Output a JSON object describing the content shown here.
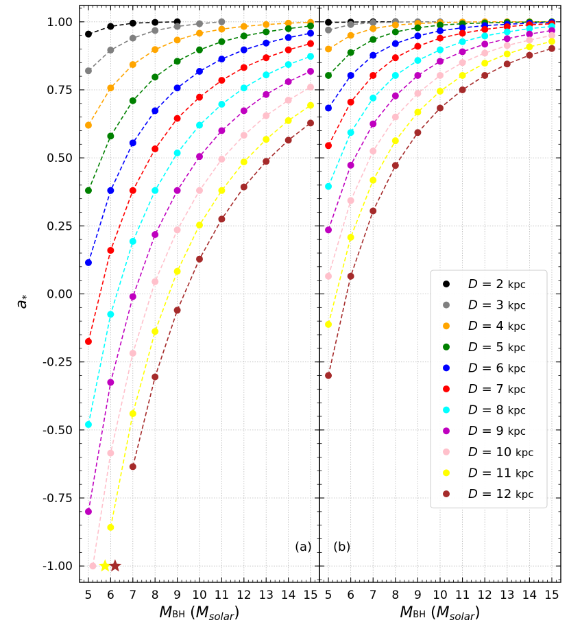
{
  "chart_data": [
    {
      "type": "line",
      "panel_label": "(a)",
      "xlabel": "M_BH (M_solar)",
      "xlabel_main": "M",
      "xlabel_sub": "BH",
      "xlabel_unit": "M",
      "xlabel_unit_sub": "solar",
      "ylabel": "a*",
      "ylabel_main": "a",
      "ylabel_sub": "*",
      "xlim": [
        4.6,
        15.4
      ],
      "ylim": [
        -1.06,
        1.06
      ],
      "xticks": [
        5,
        6,
        7,
        8,
        9,
        10,
        11,
        12,
        13,
        14,
        15
      ],
      "xtick_labels": [
        "5",
        "6",
        "7",
        "8",
        "9",
        "10",
        "11",
        "12",
        "13",
        "14",
        "15"
      ],
      "yticks": [
        1.0,
        0.75,
        0.5,
        0.25,
        0.0,
        -0.25,
        -0.5,
        -0.75,
        -1.0
      ],
      "ytick_labels": [
        "1.00",
        "0.75",
        "0.50",
        "0.25",
        "0.00",
        "-0.25",
        "-0.50",
        "-0.75",
        "-1.00"
      ],
      "grid": true,
      "series": [
        {
          "name": "D = 2 kpc",
          "color": "#000000",
          "x": [
            5,
            6,
            7,
            8,
            9
          ],
          "y": [
            0.955,
            0.983,
            0.995,
            0.998,
            1.0
          ]
        },
        {
          "name": "D = 3 kpc",
          "color": "#808080",
          "x": [
            5,
            6,
            7,
            8,
            9,
            10,
            11
          ],
          "y": [
            0.82,
            0.896,
            0.94,
            0.968,
            0.983,
            0.993,
            1.0
          ]
        },
        {
          "name": "D = 4 kpc",
          "color": "#FFA500",
          "x": [
            5,
            6,
            7,
            8,
            9,
            10,
            11,
            12,
            13,
            14,
            15
          ],
          "y": [
            0.62,
            0.757,
            0.843,
            0.898,
            0.933,
            0.958,
            0.973,
            0.983,
            0.99,
            0.995,
            0.998
          ]
        },
        {
          "name": "D = 5 kpc",
          "color": "#008000",
          "x": [
            5,
            6,
            7,
            8,
            9,
            10,
            11,
            12,
            13,
            14,
            15
          ],
          "y": [
            0.38,
            0.58,
            0.71,
            0.797,
            0.855,
            0.897,
            0.927,
            0.948,
            0.963,
            0.975,
            0.985
          ]
        },
        {
          "name": "D = 6 kpc",
          "color": "#0000FF",
          "x": [
            5,
            6,
            7,
            8,
            9,
            10,
            11,
            12,
            13,
            14,
            15
          ],
          "y": [
            0.115,
            0.38,
            0.555,
            0.673,
            0.757,
            0.818,
            0.863,
            0.897,
            0.922,
            0.942,
            0.958
          ]
        },
        {
          "name": "D = 7 kpc",
          "color": "#FF0000",
          "x": [
            5,
            6,
            7,
            8,
            9,
            10,
            11,
            12,
            13,
            14,
            15
          ],
          "y": [
            -0.175,
            0.16,
            0.38,
            0.533,
            0.645,
            0.723,
            0.785,
            0.832,
            0.868,
            0.897,
            0.92
          ]
        },
        {
          "name": "D = 8 kpc",
          "color": "#00FFFF",
          "x": [
            5,
            6,
            7,
            8,
            9,
            10,
            11,
            12,
            13,
            14,
            15
          ],
          "y": [
            -0.48,
            -0.075,
            0.193,
            0.38,
            0.518,
            0.62,
            0.697,
            0.757,
            0.805,
            0.843,
            0.873
          ]
        },
        {
          "name": "D = 9 kpc",
          "color": "#BF00BF",
          "x": [
            5,
            6,
            7,
            8,
            9,
            10,
            11,
            12,
            13,
            14,
            15
          ],
          "y": [
            -0.8,
            -0.325,
            -0.01,
            0.218,
            0.38,
            0.505,
            0.6,
            0.673,
            0.733,
            0.78,
            0.818
          ]
        },
        {
          "name": "D = 10 kpc",
          "color": "#FFC0CB",
          "x": [
            5.2,
            6,
            7,
            8,
            9,
            10,
            11,
            12,
            13,
            14,
            15
          ],
          "y": [
            -1.0,
            -0.585,
            -0.218,
            0.045,
            0.235,
            0.38,
            0.495,
            0.583,
            0.655,
            0.712,
            0.76
          ]
        },
        {
          "name": "D = 11 kpc",
          "color": "#FFFF00",
          "x": [
            6,
            7,
            8,
            9,
            10,
            11,
            12,
            13,
            14,
            15
          ],
          "y": [
            -0.858,
            -0.44,
            -0.138,
            0.083,
            0.253,
            0.38,
            0.485,
            0.568,
            0.637,
            0.693
          ]
        },
        {
          "name": "D = 12 kpc",
          "color": "#A52A2A",
          "x": [
            7,
            8,
            9,
            10,
            11,
            12,
            13,
            14,
            15
          ],
          "y": [
            -0.635,
            -0.305,
            -0.06,
            0.128,
            0.275,
            0.393,
            0.487,
            0.565,
            0.628
          ]
        }
      ],
      "markers": [
        {
          "series": "D = 11 kpc",
          "x": 5.75,
          "y": -1.0,
          "shape": "star",
          "color": "#FFFF00"
        },
        {
          "series": "D = 12 kpc",
          "x": 6.2,
          "y": -1.0,
          "shape": "star",
          "color": "#A52A2A"
        }
      ]
    },
    {
      "type": "line",
      "panel_label": "(b)",
      "xlabel": "M_BH (M_solar)",
      "xlabel_main": "M",
      "xlabel_sub": "BH",
      "xlabel_unit": "M",
      "xlabel_unit_sub": "solar",
      "xlim": [
        4.6,
        15.4
      ],
      "ylim": [
        -1.06,
        1.06
      ],
      "xticks": [
        5,
        6,
        7,
        8,
        9,
        10,
        11,
        12,
        13,
        14,
        15
      ],
      "xtick_labels": [
        "5",
        "6",
        "7",
        "8",
        "9",
        "10",
        "11",
        "12",
        "13",
        "14",
        "15"
      ],
      "yticks": [
        1.0,
        0.75,
        0.5,
        0.25,
        0.0,
        -0.25,
        -0.5,
        -0.75,
        -1.0
      ],
      "grid": true,
      "legend_position": "lower-right",
      "series": [
        {
          "name": "D = 2 kpc",
          "color": "#000000",
          "x": [
            5,
            6,
            7,
            8
          ],
          "y": [
            0.998,
            0.999,
            1.0,
            1.0
          ]
        },
        {
          "name": "D = 3 kpc",
          "color": "#808080",
          "x": [
            5,
            6,
            7,
            8,
            9,
            10
          ],
          "y": [
            0.97,
            0.99,
            0.997,
            0.999,
            1.0,
            1.0
          ]
        },
        {
          "name": "D = 4 kpc",
          "color": "#FFA500",
          "x": [
            5,
            6,
            7,
            8,
            9,
            10,
            11,
            12,
            13,
            14,
            15
          ],
          "y": [
            0.9,
            0.95,
            0.975,
            0.988,
            0.994,
            0.997,
            0.999,
            1.0,
            1.0,
            1.0,
            1.0
          ]
        },
        {
          "name": "D = 5 kpc",
          "color": "#008000",
          "x": [
            5,
            6,
            7,
            8,
            9,
            10,
            11,
            12,
            13,
            14,
            15
          ],
          "y": [
            0.803,
            0.887,
            0.935,
            0.963,
            0.978,
            0.988,
            0.993,
            0.996,
            0.998,
            0.999,
            1.0
          ]
        },
        {
          "name": "D = 6 kpc",
          "color": "#0000FF",
          "x": [
            5,
            6,
            7,
            8,
            9,
            10,
            11,
            12,
            13,
            14,
            15
          ],
          "y": [
            0.683,
            0.803,
            0.877,
            0.92,
            0.948,
            0.967,
            0.978,
            0.986,
            0.991,
            0.995,
            0.998
          ]
        },
        {
          "name": "D = 7 kpc",
          "color": "#FF0000",
          "x": [
            5,
            6,
            7,
            8,
            9,
            10,
            11,
            12,
            13,
            14,
            15
          ],
          "y": [
            0.545,
            0.705,
            0.803,
            0.868,
            0.91,
            0.94,
            0.958,
            0.972,
            0.982,
            0.989,
            0.993
          ]
        },
        {
          "name": "D = 8 kpc",
          "color": "#00FFFF",
          "x": [
            5,
            6,
            7,
            8,
            9,
            10,
            11,
            12,
            13,
            14,
            15
          ],
          "y": [
            0.395,
            0.593,
            0.72,
            0.803,
            0.858,
            0.897,
            0.927,
            0.948,
            0.963,
            0.975,
            0.983
          ]
        },
        {
          "name": "D = 9 kpc",
          "color": "#BF00BF",
          "x": [
            5,
            6,
            7,
            8,
            9,
            10,
            11,
            12,
            13,
            14,
            15
          ],
          "y": [
            0.235,
            0.473,
            0.625,
            0.728,
            0.803,
            0.855,
            0.89,
            0.918,
            0.938,
            0.955,
            0.968
          ]
        },
        {
          "name": "D = 10 kpc",
          "color": "#FFC0CB",
          "x": [
            5,
            6,
            7,
            8,
            9,
            10,
            11,
            12,
            13,
            14,
            15
          ],
          "y": [
            0.065,
            0.343,
            0.525,
            0.65,
            0.737,
            0.803,
            0.85,
            0.885,
            0.913,
            0.933,
            0.95
          ]
        },
        {
          "name": "D = 11 kpc",
          "color": "#FFFF00",
          "x": [
            5,
            6,
            7,
            8,
            9,
            10,
            11,
            12,
            13,
            14,
            15
          ],
          "y": [
            -0.112,
            0.208,
            0.418,
            0.563,
            0.668,
            0.745,
            0.803,
            0.848,
            0.882,
            0.908,
            0.928
          ]
        },
        {
          "name": "D = 12 kpc",
          "color": "#A52A2A",
          "x": [
            5,
            6,
            7,
            8,
            9,
            10,
            11,
            12,
            13,
            14,
            15
          ],
          "y": [
            -0.3,
            0.065,
            0.305,
            0.472,
            0.593,
            0.683,
            0.75,
            0.803,
            0.845,
            0.877,
            0.902
          ]
        }
      ]
    }
  ],
  "legend": {
    "unit": "kpc",
    "entries": [
      {
        "symbol": "D",
        "value": "2",
        "color": "#000000"
      },
      {
        "symbol": "D",
        "value": "3",
        "color": "#808080"
      },
      {
        "symbol": "D",
        "value": "4",
        "color": "#FFA500"
      },
      {
        "symbol": "D",
        "value": "5",
        "color": "#008000"
      },
      {
        "symbol": "D",
        "value": "6",
        "color": "#0000FF"
      },
      {
        "symbol": "D",
        "value": "7",
        "color": "#FF0000"
      },
      {
        "symbol": "D",
        "value": "8",
        "color": "#00FFFF"
      },
      {
        "symbol": "D",
        "value": "9",
        "color": "#BF00BF"
      },
      {
        "symbol": "D",
        "value": "10",
        "color": "#FFC0CB"
      },
      {
        "symbol": "D",
        "value": "11",
        "color": "#FFFF00"
      },
      {
        "symbol": "D",
        "value": "12",
        "color": "#A52A2A"
      }
    ]
  }
}
